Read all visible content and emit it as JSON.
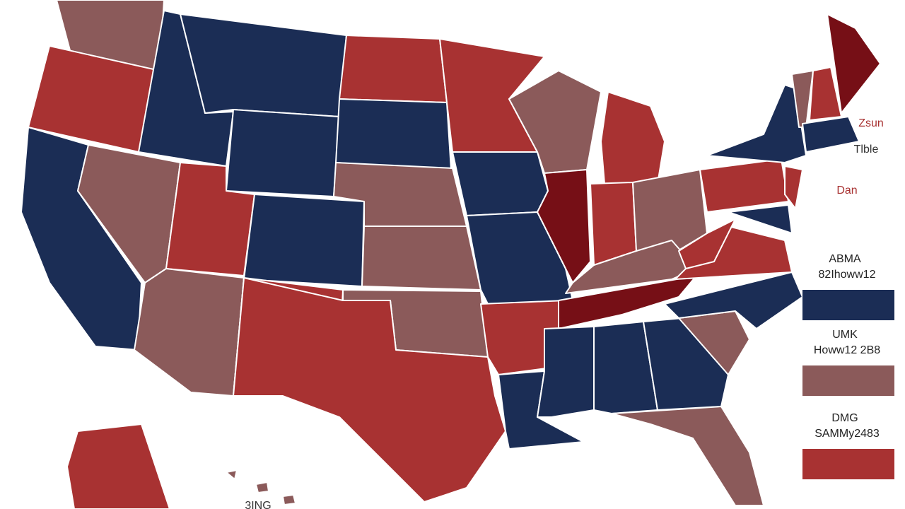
{
  "map": {
    "annotations": [
      {
        "text": "Zsun",
        "color": "#a83232"
      },
      {
        "text": "Tlble",
        "color": "#333333"
      },
      {
        "text": "Dan",
        "color": "#a83232"
      }
    ],
    "legend": [
      {
        "title": "ABMA",
        "label": "82Ihoww12",
        "color": "#1b2d55"
      },
      {
        "title": "UMK",
        "label": "Howw12 2B8",
        "color": "#8b5a5a"
      },
      {
        "title": "DMG",
        "label": "SAMMy2483",
        "color": "#a83232"
      }
    ],
    "footer": "3ING"
  }
}
